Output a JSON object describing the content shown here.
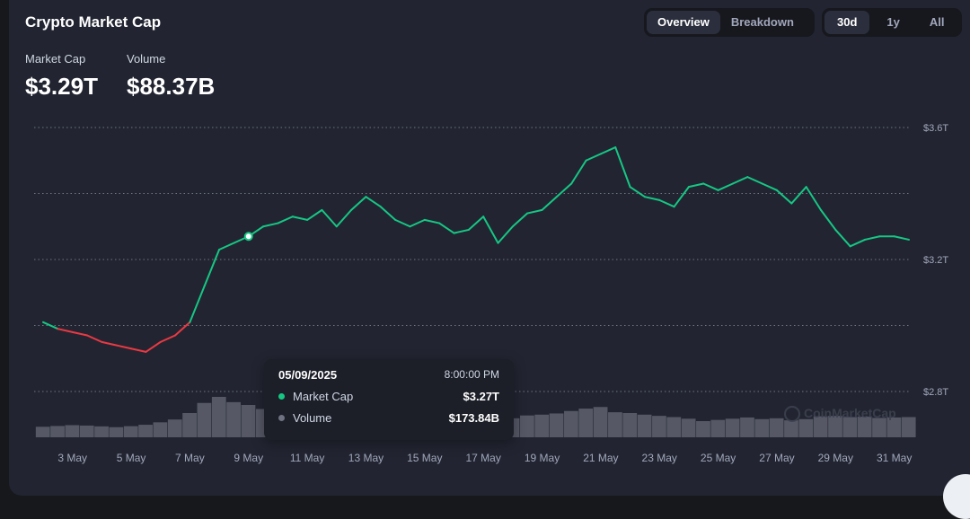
{
  "header": {
    "title": "Crypto Market Cap"
  },
  "tabs": [
    {
      "label": "Overview",
      "active": true
    },
    {
      "label": "Breakdown",
      "active": false
    }
  ],
  "ranges": [
    {
      "label": "30d",
      "active": true
    },
    {
      "label": "1y",
      "active": false
    },
    {
      "label": "All",
      "active": false
    }
  ],
  "stats": {
    "market_cap": {
      "label": "Market Cap",
      "value": "$3.29T"
    },
    "volume": {
      "label": "Volume",
      "value": "$88.37B"
    }
  },
  "tooltip": {
    "date": "05/09/2025",
    "time": "8:00:00 PM",
    "rows": [
      {
        "name": "Market Cap",
        "value": "$3.27T",
        "color": "#16c784"
      },
      {
        "name": "Volume",
        "value": "$173.84B",
        "color": "#6e7281"
      }
    ]
  },
  "watermark": "CoinMarketCap",
  "colors": {
    "up": "#16c784",
    "down": "#ea3943",
    "volume": "#5f6270",
    "grid": "#6e7281"
  },
  "chart_data": {
    "type": "line",
    "title": "Crypto Market Cap",
    "x_tick_labels": [
      "3 May",
      "5 May",
      "7 May",
      "9 May",
      "11 May",
      "13 May",
      "15 May",
      "17 May",
      "19 May",
      "21 May",
      "23 May",
      "25 May",
      "27 May",
      "29 May",
      "31 May"
    ],
    "y_tick_labels": [
      "$3.6T",
      "$3.2T",
      "$2.8T"
    ],
    "ylim_trillions": [
      2.8,
      3.6
    ],
    "grid": "horizontal dotted",
    "baseline_trillions": 3.0,
    "x_days_may": [
      2.0,
      2.5,
      3.0,
      3.5,
      4.0,
      4.5,
      5.0,
      5.5,
      6.0,
      6.5,
      7.0,
      7.5,
      8.0,
      8.5,
      9.0,
      9.5,
      10.0,
      10.5,
      11.0,
      11.5,
      12.0,
      12.5,
      13.0,
      13.5,
      14.0,
      14.5,
      15.0,
      15.5,
      16.0,
      16.5,
      17.0,
      17.5,
      18.0,
      18.5,
      19.0,
      19.5,
      20.0,
      20.5,
      21.0,
      21.5,
      22.0,
      22.5,
      23.0,
      23.5,
      24.0,
      24.5,
      25.0,
      25.5,
      26.0,
      26.5,
      27.0,
      27.5,
      28.0,
      28.5,
      29.0,
      29.5,
      30.0,
      30.5,
      31.0,
      31.5
    ],
    "series": [
      {
        "name": "Market Cap",
        "unit": "T",
        "values": [
          3.01,
          2.99,
          2.98,
          2.97,
          2.95,
          2.94,
          2.93,
          2.92,
          2.95,
          2.97,
          3.01,
          3.12,
          3.23,
          3.25,
          3.27,
          3.3,
          3.31,
          3.33,
          3.32,
          3.35,
          3.3,
          3.35,
          3.39,
          3.36,
          3.32,
          3.3,
          3.32,
          3.31,
          3.28,
          3.29,
          3.33,
          3.25,
          3.3,
          3.34,
          3.35,
          3.39,
          3.43,
          3.5,
          3.52,
          3.54,
          3.42,
          3.39,
          3.38,
          3.36,
          3.42,
          3.43,
          3.41,
          3.43,
          3.45,
          3.43,
          3.41,
          3.37,
          3.42,
          3.35,
          3.29,
          3.24,
          3.26,
          3.27,
          3.27,
          3.26
        ]
      },
      {
        "name": "Volume",
        "values": [
          52,
          56,
          60,
          58,
          54,
          50,
          55,
          62,
          74,
          88,
          120,
          170,
          200,
          174,
          160,
          140,
          132,
          126,
          138,
          110,
          112,
          118,
          104,
          100,
          96,
          100,
          102,
          105,
          90,
          92,
          100,
          96,
          94,
          108,
          112,
          118,
          130,
          142,
          150,
          124,
          120,
          112,
          106,
          100,
          92,
          80,
          86,
          92,
          98,
          90,
          94,
          84,
          90,
          104,
          106,
          100,
          102,
          96,
          98,
          100
        ]
      }
    ]
  }
}
